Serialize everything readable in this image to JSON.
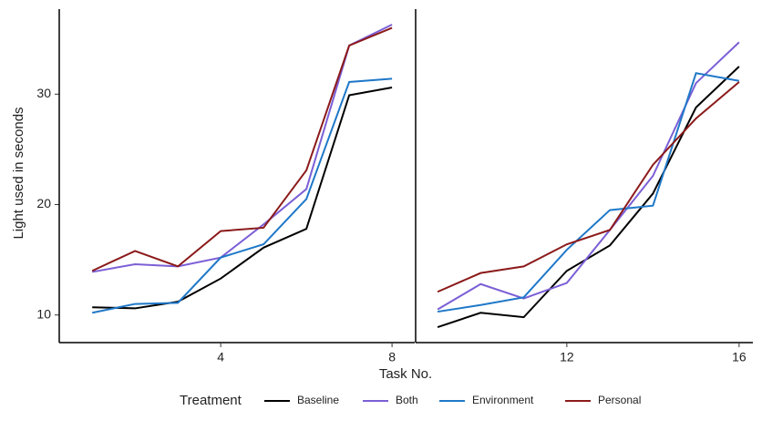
{
  "chart_data": {
    "type": "line",
    "x_label": "Task No.",
    "y_label": "Light used in seconds",
    "legend_title": "Treatment",
    "x": [
      1,
      2,
      3,
      4,
      5,
      6,
      7,
      8,
      9,
      10,
      11,
      12,
      13,
      14,
      15,
      16
    ],
    "series": [
      {
        "name": "Baseline",
        "color": "#000000",
        "values": [
          10.7,
          10.6,
          11.2,
          13.3,
          16.1,
          17.8,
          29.9,
          30.6,
          8.9,
          10.2,
          9.8,
          14.0,
          16.3,
          21.0,
          28.8,
          32.5
        ]
      },
      {
        "name": "Both",
        "color": "#7b5fd6",
        "values": [
          13.9,
          14.6,
          14.4,
          15.2,
          18.2,
          21.4,
          34.4,
          36.3,
          10.5,
          12.8,
          11.5,
          12.9,
          17.7,
          22.6,
          31.0,
          34.7
        ]
      },
      {
        "name": "Environment",
        "color": "#1f78c8",
        "values": [
          10.2,
          11.0,
          11.1,
          15.2,
          16.4,
          20.5,
          31.1,
          31.4,
          10.3,
          10.9,
          11.6,
          15.9,
          19.5,
          19.9,
          31.9,
          31.2
        ]
      },
      {
        "name": "Personal",
        "color": "#8b1a1a",
        "values": [
          14.0,
          15.8,
          14.4,
          17.6,
          17.9,
          23.1,
          34.4,
          36.0,
          12.1,
          13.8,
          14.4,
          16.4,
          17.7,
          23.6,
          27.8,
          31.1
        ]
      }
    ],
    "ylim": [
      7.5,
      37.7
    ],
    "yticks": [
      10,
      20,
      30
    ],
    "panels": [
      {
        "xlim": [
          0.23,
          8.53
        ],
        "xticks": [
          4,
          8
        ]
      },
      {
        "xlim": [
          8.49,
          16.32
        ],
        "xticks": [
          12,
          16
        ]
      }
    ]
  }
}
